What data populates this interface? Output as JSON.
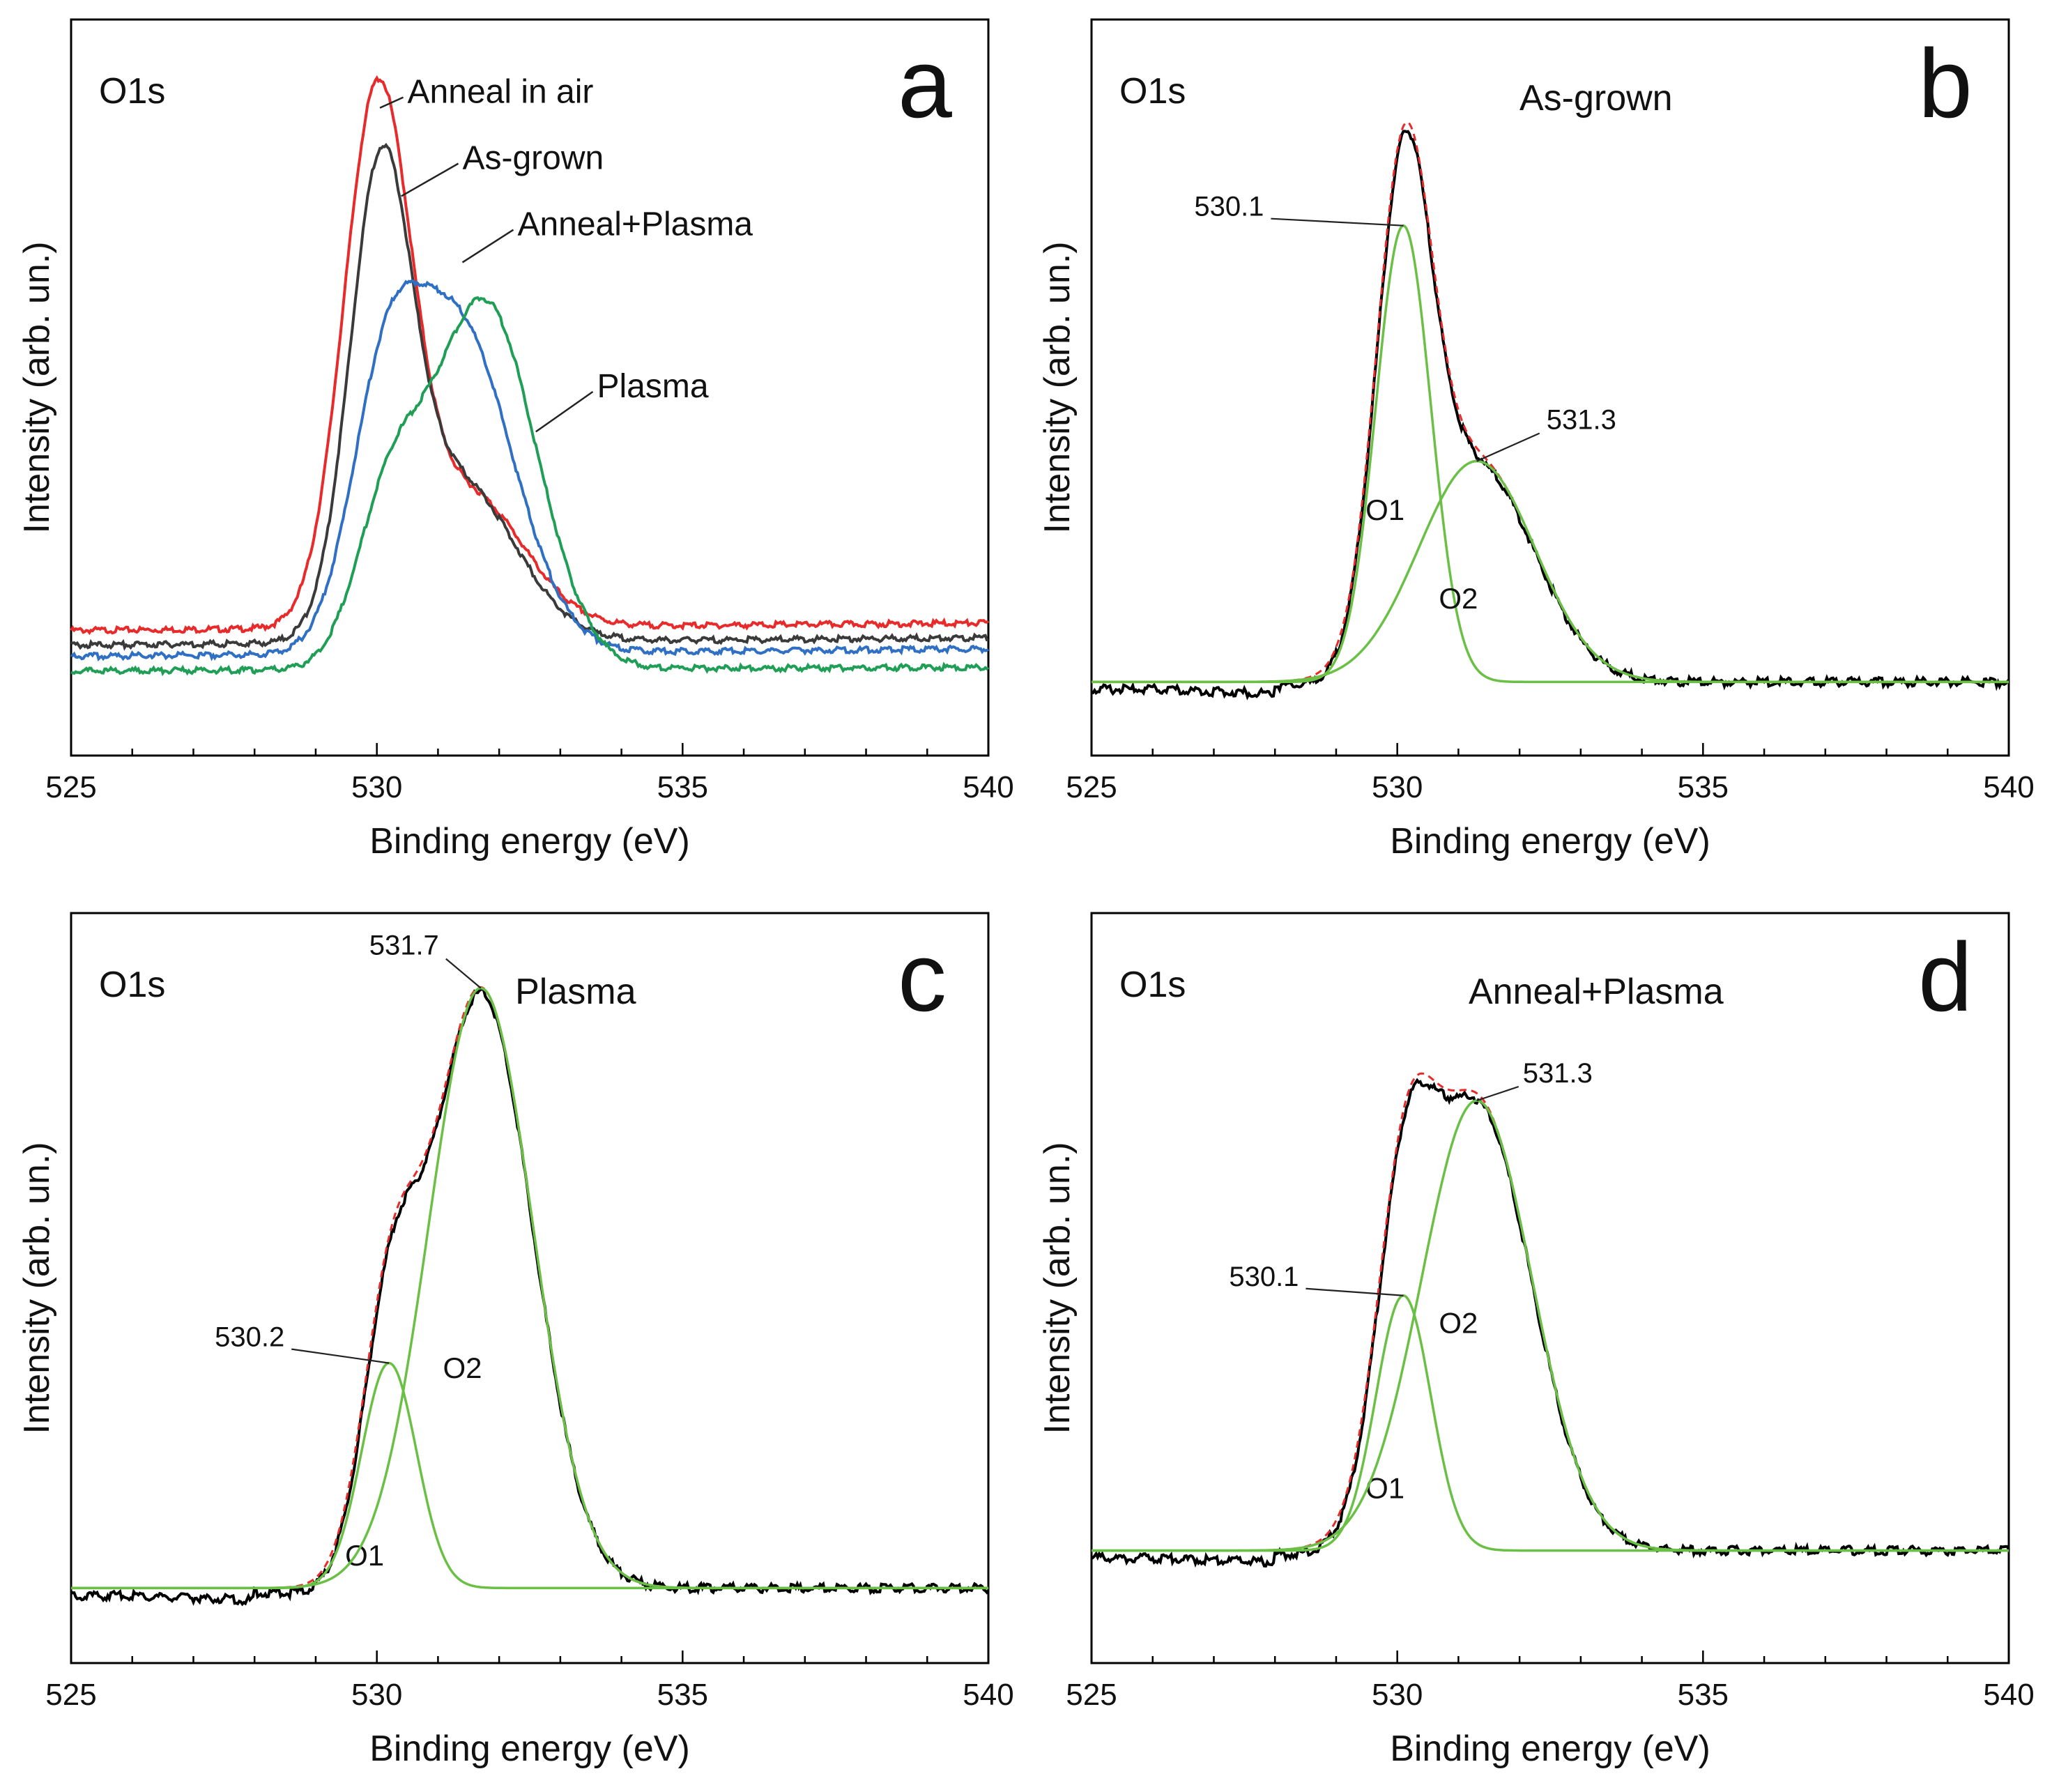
{
  "colors": {
    "as_grown": "#3a3a3a",
    "anneal_in_air": "#e82a2a",
    "anneal_plasma": "#2f6fc4",
    "plasma": "#1f9e55",
    "measured": "#000000",
    "fit": "#e82a2a",
    "component": "#6abf45",
    "axis": "#000000"
  },
  "chart_data": [
    {
      "id": "a",
      "type": "line",
      "panel_letter": "a",
      "corner_label": "O1s",
      "xlabel": "Binding energy (eV)",
      "ylabel": "Intensity (arb. un.)",
      "xlim": [
        525,
        540
      ],
      "ylim": [
        0,
        1
      ],
      "x_ticks": [
        "525",
        "530",
        "535",
        "540"
      ],
      "y_ticks_labeled": false,
      "grid": false,
      "series": [
        {
          "name": "Anneal in air",
          "color_key": "anneal_in_air",
          "baseline": 0.17,
          "baseline_end": 0.18,
          "peaks": [
            {
              "center": 530.0,
              "height": 0.7,
              "sigma": 0.55
            },
            {
              "center": 531.5,
              "height": 0.18,
              "sigma": 0.9
            }
          ],
          "label_anchor": [
            530.05,
            0.88
          ],
          "label_pos": [
            530.5,
            0.9
          ]
        },
        {
          "name": "As-grown",
          "color_key": "as_grown",
          "baseline": 0.15,
          "baseline_end": 0.16,
          "peaks": [
            {
              "center": 530.05,
              "height": 0.58,
              "sigma": 0.5
            },
            {
              "center": 531.3,
              "height": 0.22,
              "sigma": 0.95
            }
          ],
          "label_anchor": [
            530.4,
            0.76
          ],
          "label_pos": [
            531.4,
            0.81
          ]
        },
        {
          "name": "Anneal+Plasma",
          "color_key": "anneal_plasma",
          "baseline": 0.135,
          "baseline_end": 0.145,
          "peaks": [
            {
              "center": 530.1,
              "height": 0.26,
              "sigma": 0.55
            },
            {
              "center": 531.3,
              "height": 0.45,
              "sigma": 0.9
            }
          ],
          "label_anchor": [
            531.4,
            0.67
          ],
          "label_pos": [
            532.3,
            0.72
          ]
        },
        {
          "name": "Plasma",
          "color_key": "plasma",
          "baseline": 0.115,
          "baseline_end": 0.12,
          "peaks": [
            {
              "center": 530.2,
              "height": 0.2,
              "sigma": 0.55
            },
            {
              "center": 531.75,
              "height": 0.5,
              "sigma": 0.85
            }
          ],
          "label_anchor": [
            532.6,
            0.44
          ],
          "label_pos": [
            533.6,
            0.5
          ]
        }
      ]
    },
    {
      "id": "b",
      "type": "line",
      "panel_letter": "b",
      "corner_label": "O1s",
      "sample_label": "As-grown",
      "xlabel": "Binding energy (eV)",
      "ylabel": "Intensity (arb. un.)",
      "xlim": [
        525,
        540
      ],
      "ylim": [
        0,
        1
      ],
      "x_ticks": [
        "525",
        "530",
        "535",
        "540"
      ],
      "y_ticks_labeled": false,
      "grid": false,
      "baseline": 0.1,
      "components": [
        {
          "name": "O1",
          "center": 530.1,
          "height": 0.62,
          "sigma": 0.45,
          "peak_label": "530.1",
          "comp_label_pos": [
            529.8,
            0.32
          ]
        },
        {
          "name": "O2",
          "center": 531.3,
          "height": 0.3,
          "sigma": 0.95,
          "peak_label": "531.3",
          "comp_label_pos": [
            531.0,
            0.2
          ]
        }
      ]
    },
    {
      "id": "c",
      "type": "line",
      "panel_letter": "c",
      "corner_label": "O1s",
      "sample_label": "Plasma",
      "xlabel": "Binding energy (eV)",
      "ylabel": "Intensity (arb. un.)",
      "xlim": [
        525,
        540
      ],
      "ylim": [
        0,
        1
      ],
      "x_ticks": [
        "525",
        "530",
        "535",
        "540"
      ],
      "y_ticks_labeled": false,
      "grid": false,
      "baseline": 0.1,
      "components": [
        {
          "name": "O1",
          "center": 530.2,
          "height": 0.3,
          "sigma": 0.45,
          "peak_label": "530.2",
          "comp_label_pos": [
            529.8,
            0.13
          ]
        },
        {
          "name": "O2",
          "center": 531.7,
          "height": 0.8,
          "sigma": 0.85,
          "peak_label": "531.7",
          "comp_label_pos": [
            531.4,
            0.38
          ]
        }
      ]
    },
    {
      "id": "d",
      "type": "line",
      "panel_letter": "d",
      "corner_label": "O1s",
      "sample_label": "Anneal+Plasma",
      "xlabel": "Binding energy (eV)",
      "ylabel": "Intensity (arb. un.)",
      "xlim": [
        525,
        540
      ],
      "ylim": [
        0,
        1
      ],
      "x_ticks": [
        "525",
        "530",
        "535",
        "540"
      ],
      "y_ticks_labeled": false,
      "grid": false,
      "baseline": 0.15,
      "components": [
        {
          "name": "O1",
          "center": 530.1,
          "height": 0.34,
          "sigma": 0.45,
          "peak_label": "530.1",
          "comp_label_pos": [
            529.8,
            0.22
          ]
        },
        {
          "name": "O2",
          "center": 531.3,
          "height": 0.6,
          "sigma": 0.9,
          "peak_label": "531.3",
          "comp_label_pos": [
            531.0,
            0.44
          ]
        }
      ]
    }
  ]
}
